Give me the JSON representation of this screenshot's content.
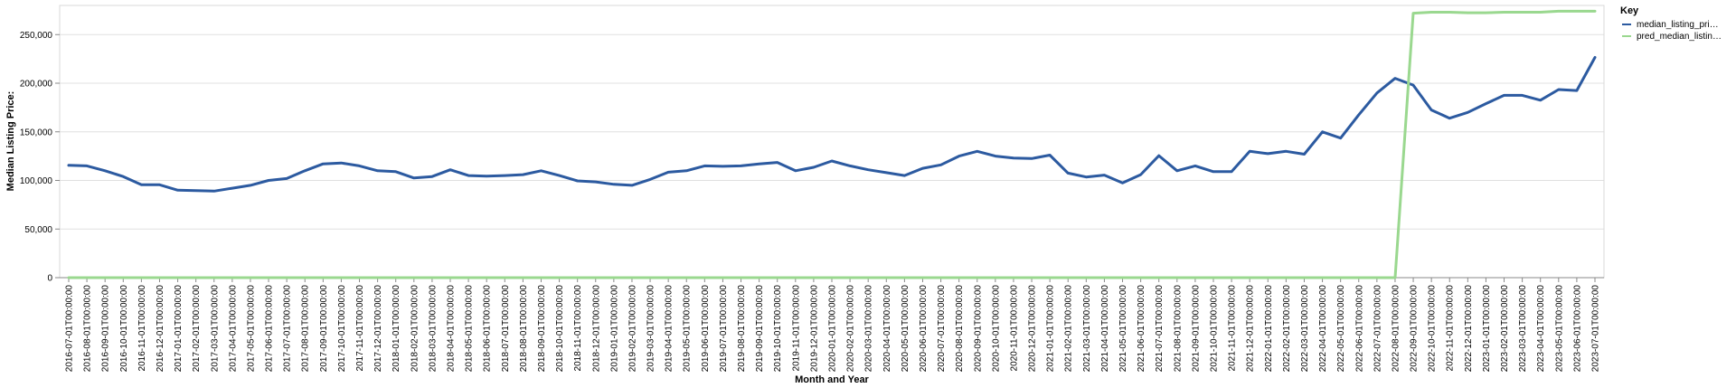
{
  "chart_data": {
    "type": "line",
    "xlabel": "Month and Year",
    "ylabel": "Median Listing Price:",
    "ylim": [
      0,
      280000
    ],
    "yticks": [
      "0",
      "50,000",
      "100,000",
      "150,000",
      "200,000",
      "250,000"
    ],
    "ytick_values": [
      0,
      50000,
      100000,
      150000,
      200000,
      250000
    ],
    "grid": true,
    "legend": {
      "title": "Key",
      "placement": "top-right",
      "entries": [
        "median_listing_pri…",
        "pred_median_listin…"
      ]
    },
    "categories": [
      "2016-07-01T00:00:00",
      "2016-08-01T00:00:00",
      "2016-09-01T00:00:00",
      "2016-10-01T00:00:00",
      "2016-11-01T00:00:00",
      "2016-12-01T00:00:00",
      "2017-01-01T00:00:00",
      "2017-02-01T00:00:00",
      "2017-03-01T00:00:00",
      "2017-04-01T00:00:00",
      "2017-05-01T00:00:00",
      "2017-06-01T00:00:00",
      "2017-07-01T00:00:00",
      "2017-08-01T00:00:00",
      "2017-09-01T00:00:00",
      "2017-10-01T00:00:00",
      "2017-11-01T00:00:00",
      "2017-12-01T00:00:00",
      "2018-01-01T00:00:00",
      "2018-02-01T00:00:00",
      "2018-03-01T00:00:00",
      "2018-04-01T00:00:00",
      "2018-05-01T00:00:00",
      "2018-06-01T00:00:00",
      "2018-07-01T00:00:00",
      "2018-08-01T00:00:00",
      "2018-09-01T00:00:00",
      "2018-10-01T00:00:00",
      "2018-11-01T00:00:00",
      "2018-12-01T00:00:00",
      "2019-01-01T00:00:00",
      "2019-02-01T00:00:00",
      "2019-03-01T00:00:00",
      "2019-04-01T00:00:00",
      "2019-05-01T00:00:00",
      "2019-06-01T00:00:00",
      "2019-07-01T00:00:00",
      "2019-08-01T00:00:00",
      "2019-09-01T00:00:00",
      "2019-10-01T00:00:00",
      "2019-11-01T00:00:00",
      "2019-12-01T00:00:00",
      "2020-01-01T00:00:00",
      "2020-02-01T00:00:00",
      "2020-03-01T00:00:00",
      "2020-04-01T00:00:00",
      "2020-05-01T00:00:00",
      "2020-06-01T00:00:00",
      "2020-07-01T00:00:00",
      "2020-08-01T00:00:00",
      "2020-09-01T00:00:00",
      "2020-10-01T00:00:00",
      "2020-11-01T00:00:00",
      "2020-12-01T00:00:00",
      "2021-01-01T00:00:00",
      "2021-02-01T00:00:00",
      "2021-03-01T00:00:00",
      "2021-04-01T00:00:00",
      "2021-05-01T00:00:00",
      "2021-06-01T00:00:00",
      "2021-07-01T00:00:00",
      "2021-08-01T00:00:00",
      "2021-09-01T00:00:00",
      "2021-10-01T00:00:00",
      "2021-11-01T00:00:00",
      "2021-12-01T00:00:00",
      "2022-01-01T00:00:00",
      "2022-02-01T00:00:00",
      "2022-03-01T00:00:00",
      "2022-04-01T00:00:00",
      "2022-05-01T00:00:00",
      "2022-06-01T00:00:00",
      "2022-07-01T00:00:00",
      "2022-08-01T00:00:00",
      "2022-09-01T00:00:00",
      "2022-10-01T00:00:00",
      "2022-11-01T00:00:00",
      "2022-12-01T00:00:00",
      "2023-01-01T00:00:00",
      "2023-02-01T00:00:00",
      "2023-03-01T00:00:00",
      "2023-04-01T00:00:00",
      "2023-05-01T00:00:00",
      "2023-06-01T00:00:00",
      "2023-07-01T00:00:00"
    ],
    "series": [
      {
        "name": "median_listing_pri…",
        "color": "#2c5aa0",
        "values": [
          115500,
          115000,
          110000,
          104000,
          95500,
          95500,
          90000,
          89500,
          89000,
          92000,
          95000,
          100000,
          102000,
          110000,
          117000,
          118000,
          115000,
          110000,
          109000,
          102500,
          104000,
          111000,
          105000,
          104500,
          105000,
          106000,
          110000,
          105000,
          99500,
          98500,
          96000,
          95000,
          101000,
          108500,
          110000,
          115000,
          114500,
          115000,
          117000,
          118500,
          110000,
          113500,
          120000,
          115000,
          111000,
          108000,
          105000,
          112500,
          116000,
          125000,
          130000,
          125000,
          123000,
          122500,
          126000,
          107500,
          103500,
          105500,
          97500,
          106000,
          125500,
          110000,
          115000,
          109000,
          109000,
          130000,
          127500,
          130000,
          127000,
          150000,
          143500,
          167500,
          190000,
          205000,
          198000,
          172500,
          164000,
          170000,
          179000,
          187500,
          187500,
          182500,
          193500,
          192500,
          226500
        ]
      },
      {
        "name": "pred_median_listin…",
        "color": "#9ad88f",
        "values": [
          0,
          0,
          0,
          0,
          0,
          0,
          0,
          0,
          0,
          0,
          0,
          0,
          0,
          0,
          0,
          0,
          0,
          0,
          0,
          0,
          0,
          0,
          0,
          0,
          0,
          0,
          0,
          0,
          0,
          0,
          0,
          0,
          0,
          0,
          0,
          0,
          0,
          0,
          0,
          0,
          0,
          0,
          0,
          0,
          0,
          0,
          0,
          0,
          0,
          0,
          0,
          0,
          0,
          0,
          0,
          0,
          0,
          0,
          0,
          0,
          0,
          0,
          0,
          0,
          0,
          0,
          0,
          0,
          0,
          0,
          0,
          0,
          0,
          0,
          272000,
          273000,
          273000,
          272500,
          272500,
          273000,
          273000,
          273000,
          274000,
          274000,
          274000
        ]
      }
    ]
  }
}
